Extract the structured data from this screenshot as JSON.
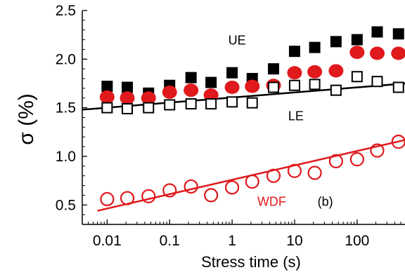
{
  "chart_data": {
    "type": "scatter",
    "xlabel": "Stress time (s)",
    "ylabel": "σ (%)",
    "xscale": "log",
    "xlim": [
      0.004,
      600
    ],
    "ylim": [
      0.3,
      2.5
    ],
    "x_ticks": [
      0.01,
      0.1,
      1,
      10,
      100
    ],
    "x_tick_labels": [
      "0.01",
      "0.1",
      "1",
      "10",
      "100"
    ],
    "y_ticks": [
      0.5,
      1.0,
      1.5,
      2.0,
      2.5
    ],
    "y_tick_labels": [
      "0.5",
      "1.0",
      "1.5",
      "2.0",
      "2.5"
    ],
    "grid": false,
    "annotations": [
      {
        "text": "UE",
        "x": 1.2,
        "y": 2.15,
        "color": "#000000"
      },
      {
        "text": "LE",
        "x": 10.5,
        "y": 1.37,
        "color": "#000000"
      },
      {
        "text": "WDF",
        "x": 4.3,
        "y": 0.49,
        "color": "#e0191c"
      },
      {
        "text": "(b)",
        "x": 31,
        "y": 0.49,
        "color": "#000000"
      }
    ],
    "series": [
      {
        "name": "UE",
        "marker": "filled-square",
        "color": "#000000",
        "x": [
          0.01,
          0.021,
          0.046,
          0.1,
          0.22,
          0.46,
          1,
          2.1,
          4.6,
          10,
          21,
          46,
          100,
          210,
          460
        ],
        "y": [
          1.72,
          1.71,
          1.65,
          1.73,
          1.81,
          1.76,
          1.86,
          1.8,
          1.9,
          2.08,
          2.12,
          2.18,
          2.2,
          2.28,
          2.26
        ]
      },
      {
        "name": "UE-red",
        "marker": "filled-circle",
        "color": "#e0191c",
        "x": [
          0.01,
          0.021,
          0.046,
          0.1,
          0.22,
          0.46,
          1,
          2.1,
          4.6,
          10,
          21,
          46,
          100,
          210,
          460
        ],
        "y": [
          1.61,
          1.6,
          1.6,
          1.66,
          1.68,
          1.63,
          1.71,
          1.72,
          1.73,
          1.86,
          1.87,
          1.88,
          2.07,
          2.06,
          2.06
        ]
      },
      {
        "name": "LE",
        "marker": "open-square",
        "color": "#000000",
        "x": [
          0.01,
          0.021,
          0.046,
          0.1,
          0.22,
          0.46,
          1,
          2.1,
          4.6,
          10,
          21,
          46,
          100,
          210,
          460
        ],
        "y": [
          1.5,
          1.49,
          1.5,
          1.53,
          1.54,
          1.54,
          1.56,
          1.55,
          1.71,
          1.73,
          1.74,
          1.68,
          1.82,
          1.77,
          1.71
        ]
      },
      {
        "name": "WDF",
        "marker": "open-circle",
        "color": "#e0191c",
        "x": [
          0.01,
          0.021,
          0.046,
          0.1,
          0.22,
          0.46,
          1,
          2.1,
          4.6,
          10,
          21,
          46,
          100,
          210,
          460
        ],
        "y": [
          0.56,
          0.57,
          0.59,
          0.65,
          0.69,
          0.6,
          0.68,
          0.74,
          0.8,
          0.85,
          0.83,
          0.95,
          0.97,
          1.06,
          1.15
        ]
      }
    ],
    "fits": [
      {
        "name": "LE",
        "color": "#000000",
        "x": [
          0.004,
          600
        ],
        "y": [
          1.48,
          1.75
        ]
      },
      {
        "name": "WDF",
        "color": "#e0191c",
        "x": [
          0.007,
          600
        ],
        "y": [
          0.44,
          1.17
        ]
      }
    ]
  }
}
